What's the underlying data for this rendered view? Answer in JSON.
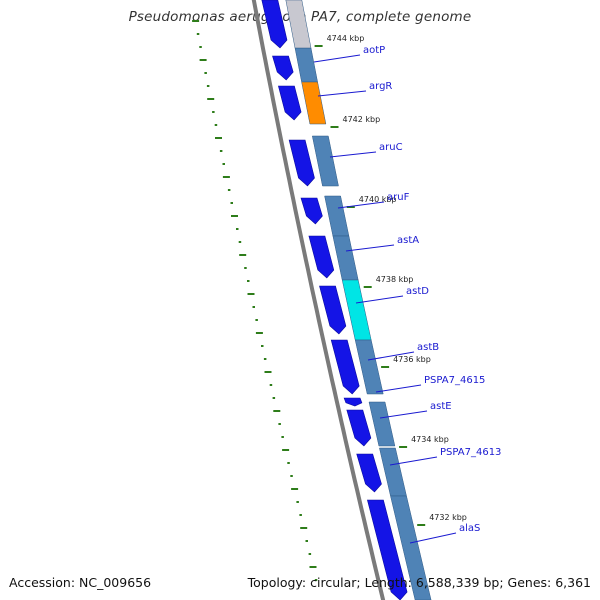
{
  "title": "Pseudomonas aeruginosa PA7, complete genome",
  "footer": {
    "accession": "Accession: NC_009656",
    "summary": "Topology: circular; Length: 6,588,339 bp; Genes: 6,361"
  },
  "colors": {
    "backbone": "#7a7a7a",
    "cds_arrow": "#1414e6",
    "default_gene": "#4f83b6",
    "gc_skew": "#2e7d1a",
    "label_line": "#1a1ad0"
  },
  "ticks": [
    {
      "label": "4744 kbp"
    },
    {
      "label": "4742 kbp"
    },
    {
      "label": "4740 kbp"
    },
    {
      "label": "4738 kbp"
    },
    {
      "label": "4736 kbp"
    },
    {
      "label": "4734 kbp"
    },
    {
      "label": "4732 kbp"
    }
  ],
  "genes": [
    {
      "label": "aotP",
      "color": "#4f83b6"
    },
    {
      "label": "argR",
      "color": "#ff8c00"
    },
    {
      "label": "aruC",
      "color": "#4f83b6"
    },
    {
      "label": "aruF",
      "color": "#4f83b6"
    },
    {
      "label": "astA",
      "color": "#4f83b6"
    },
    {
      "label": "astD",
      "color": "#00e5e5"
    },
    {
      "label": "astB",
      "color": "#4f83b6"
    },
    {
      "label": "PSPA7_4615",
      "color": "#4f83b6"
    },
    {
      "label": "astE",
      "color": "#4f83b6"
    },
    {
      "label": "PSPA7_4613",
      "color": "#4f83b6"
    },
    {
      "label": "alaS",
      "color": "#f08c8c"
    }
  ]
}
